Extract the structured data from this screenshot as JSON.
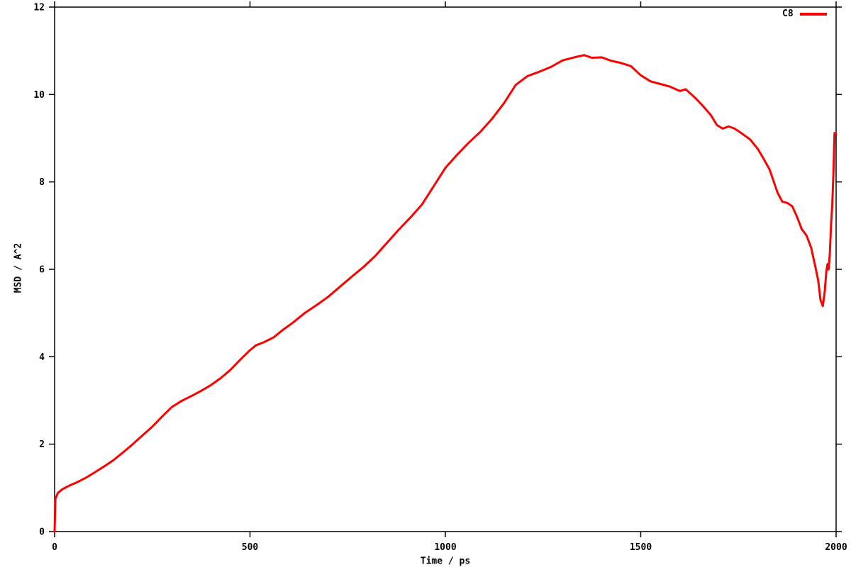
{
  "chart_data": {
    "type": "line",
    "title": "",
    "xlabel": "Time / ps",
    "ylabel": "MSD / A^2",
    "xlim": [
      0,
      2000
    ],
    "ylim": [
      0,
      12
    ],
    "xticks": [
      0,
      500,
      1000,
      1500,
      2000
    ],
    "xtick_labels": [
      "0",
      "500",
      "1000",
      "1500",
      "2000"
    ],
    "yticks": [
      0,
      2,
      4,
      6,
      8,
      10,
      12
    ],
    "ytick_labels": [
      "0",
      "2",
      "4",
      "6",
      "8",
      "10",
      "12"
    ],
    "grid": false,
    "tick_direction": "out",
    "border_box": true,
    "legend_position": "top-right-inside",
    "axis_color": "#000000",
    "background_color": "#ffffff",
    "series": [
      {
        "name": "C8",
        "color": "#ff0000",
        "x": [
          0,
          2,
          8,
          20,
          40,
          60,
          80,
          100,
          125,
          150,
          175,
          200,
          225,
          250,
          275,
          300,
          325,
          350,
          375,
          400,
          425,
          450,
          475,
          500,
          515,
          535,
          560,
          585,
          610,
          640,
          670,
          700,
          730,
          760,
          790,
          820,
          850,
          880,
          910,
          940,
          970,
          1000,
          1030,
          1060,
          1090,
          1120,
          1150,
          1180,
          1210,
          1240,
          1270,
          1300,
          1330,
          1355,
          1375,
          1400,
          1425,
          1450,
          1475,
          1500,
          1525,
          1550,
          1575,
          1600,
          1615,
          1640,
          1660,
          1680,
          1695,
          1710,
          1725,
          1740,
          1760,
          1780,
          1800,
          1815,
          1830,
          1850,
          1862,
          1875,
          1888,
          1900,
          1912,
          1924,
          1936,
          1946,
          1954,
          1960,
          1966,
          1971,
          1975,
          1978,
          1981,
          1984,
          1987,
          1990,
          1993,
          1996,
          2000
        ],
        "y": [
          0,
          0.74,
          0.88,
          0.97,
          1.06,
          1.14,
          1.23,
          1.34,
          1.48,
          1.63,
          1.81,
          2.0,
          2.2,
          2.4,
          2.63,
          2.85,
          2.99,
          3.1,
          3.22,
          3.35,
          3.51,
          3.7,
          3.93,
          4.15,
          4.26,
          4.33,
          4.44,
          4.62,
          4.78,
          5.0,
          5.18,
          5.37,
          5.6,
          5.83,
          6.05,
          6.3,
          6.6,
          6.9,
          7.18,
          7.48,
          7.9,
          8.32,
          8.62,
          8.9,
          9.15,
          9.45,
          9.8,
          10.22,
          10.42,
          10.52,
          10.63,
          10.78,
          10.85,
          10.9,
          10.84,
          10.85,
          10.77,
          10.72,
          10.65,
          10.44,
          10.3,
          10.24,
          10.18,
          10.08,
          10.12,
          9.92,
          9.73,
          9.52,
          9.3,
          9.22,
          9.27,
          9.22,
          9.1,
          8.97,
          8.75,
          8.52,
          8.28,
          7.76,
          7.55,
          7.52,
          7.44,
          7.2,
          6.92,
          6.78,
          6.5,
          6.1,
          5.75,
          5.3,
          5.16,
          5.5,
          5.95,
          6.12,
          6.0,
          6.38,
          7.0,
          7.45,
          8.15,
          9.12,
          9.1
        ]
      }
    ]
  }
}
